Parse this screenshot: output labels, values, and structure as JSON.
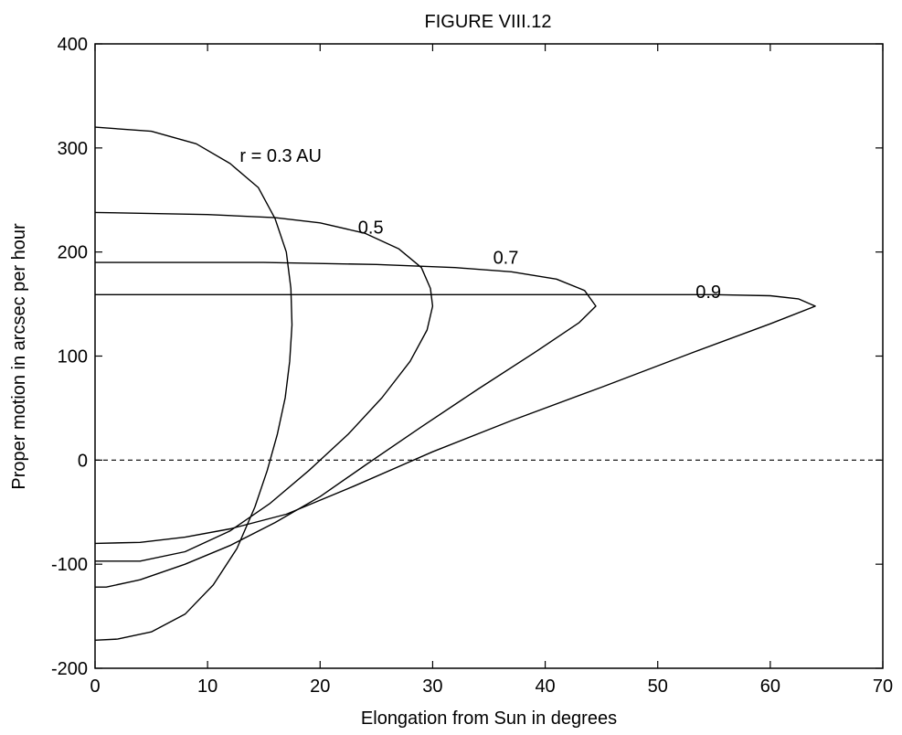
{
  "chart_data": {
    "type": "line",
    "title": "FIGURE VIII.12",
    "xlabel": "Elongation from Sun in degrees",
    "ylabel": "Proper motion in arcsec per hour",
    "xlim": [
      0,
      70
    ],
    "ylim": [
      -200,
      400
    ],
    "xticks": [
      0,
      10,
      20,
      30,
      40,
      50,
      60,
      70
    ],
    "yticks": [
      -200,
      -100,
      0,
      100,
      200,
      300,
      400
    ],
    "xtick_labels": [
      "0",
      "10",
      "20",
      "30",
      "40",
      "50",
      "60",
      "70"
    ],
    "ytick_labels": [
      "-200",
      "-100",
      "0",
      "100",
      "200",
      "300",
      "400"
    ],
    "grid": false,
    "reference_line": {
      "y": 0,
      "style": "dashed"
    },
    "series": [
      {
        "name": "r = 0.3 AU",
        "label_at": [
          16.5,
          293
        ],
        "points": [
          [
            0,
            320
          ],
          [
            5,
            316
          ],
          [
            9,
            304
          ],
          [
            12,
            285
          ],
          [
            14.5,
            262
          ],
          [
            16,
            232
          ],
          [
            17,
            200
          ],
          [
            17.4,
            165
          ],
          [
            17.5,
            130
          ],
          [
            17.3,
            95
          ],
          [
            16.9,
            60
          ],
          [
            16.2,
            25
          ],
          [
            15.3,
            -10
          ],
          [
            14.2,
            -45
          ],
          [
            12.6,
            -85
          ],
          [
            10.5,
            -120
          ],
          [
            8,
            -148
          ],
          [
            5,
            -165
          ],
          [
            2,
            -172
          ],
          [
            0,
            -173
          ]
        ]
      },
      {
        "name": "0.5",
        "label_at": [
          24.5,
          224
        ],
        "points": [
          [
            0,
            238
          ],
          [
            10,
            236
          ],
          [
            16,
            233
          ],
          [
            20,
            228
          ],
          [
            24,
            218
          ],
          [
            27,
            203
          ],
          [
            29,
            185
          ],
          [
            29.8,
            165
          ],
          [
            30,
            148
          ],
          [
            29.5,
            125
          ],
          [
            28,
            95
          ],
          [
            25.5,
            60
          ],
          [
            22.5,
            25
          ],
          [
            19,
            -10
          ],
          [
            15.5,
            -42
          ],
          [
            12,
            -68
          ],
          [
            8,
            -88
          ],
          [
            4,
            -97
          ],
          [
            0,
            -97
          ]
        ]
      },
      {
        "name": "0.7",
        "label_at": [
          36.5,
          195
        ],
        "points": [
          [
            0,
            190
          ],
          [
            15,
            190
          ],
          [
            25,
            188
          ],
          [
            32,
            185
          ],
          [
            37,
            181
          ],
          [
            41,
            174
          ],
          [
            43.5,
            163
          ],
          [
            44.5,
            148
          ],
          [
            43,
            132
          ],
          [
            39,
            103
          ],
          [
            34,
            68
          ],
          [
            29,
            32
          ],
          [
            24,
            -5
          ],
          [
            20,
            -35
          ],
          [
            16,
            -60
          ],
          [
            12,
            -82
          ],
          [
            8,
            -100
          ],
          [
            4,
            -115
          ],
          [
            1,
            -122
          ],
          [
            0,
            -122
          ]
        ]
      },
      {
        "name": "0.9",
        "label_at": [
          54.5,
          162
        ],
        "points": [
          [
            0,
            159
          ],
          [
            20,
            159
          ],
          [
            40,
            159
          ],
          [
            55,
            159
          ],
          [
            60,
            158
          ],
          [
            62.5,
            155
          ],
          [
            64,
            148
          ],
          [
            60,
            131
          ],
          [
            53,
            103
          ],
          [
            45,
            70
          ],
          [
            37,
            38
          ],
          [
            30,
            8
          ],
          [
            23,
            -25
          ],
          [
            17,
            -52
          ],
          [
            12,
            -66
          ],
          [
            8,
            -74
          ],
          [
            4,
            -79
          ],
          [
            0,
            -80
          ]
        ]
      }
    ]
  }
}
